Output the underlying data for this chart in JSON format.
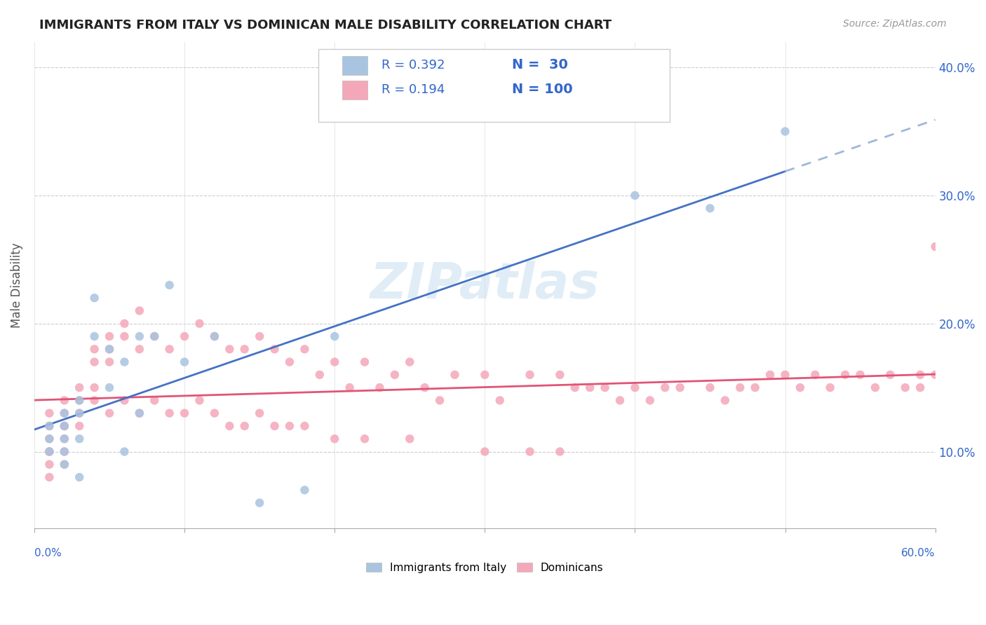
{
  "title": "IMMIGRANTS FROM ITALY VS DOMINICAN MALE DISABILITY CORRELATION CHART",
  "source": "Source: ZipAtlas.com",
  "ylabel": "Male Disability",
  "series1_label": "Immigrants from Italy",
  "series1_R": 0.392,
  "series1_N": 30,
  "series1_color": "#a8c4e0",
  "series1_trend_color": "#4472c4",
  "series1_trend_dash_color": "#a0b8d8",
  "series2_label": "Dominicans",
  "series2_R": 0.194,
  "series2_N": 100,
  "series2_color": "#f4a7b9",
  "series2_trend_color": "#e05575",
  "watermark": "ZIPatlas",
  "xmin": 0.0,
  "xmax": 0.6,
  "ymin": 0.04,
  "ymax": 0.42,
  "yticks": [
    0.1,
    0.2,
    0.3,
    0.4
  ],
  "ytick_labels": [
    "10.0%",
    "20.0%",
    "30.0%",
    "40.0%"
  ],
  "background_color": "#ffffff",
  "legend_text_color": "#333333",
  "legend_val_color": "#3366cc",
  "series1_x": [
    0.01,
    0.01,
    0.01,
    0.02,
    0.02,
    0.02,
    0.02,
    0.02,
    0.03,
    0.03,
    0.03,
    0.03,
    0.04,
    0.04,
    0.05,
    0.05,
    0.06,
    0.06,
    0.07,
    0.07,
    0.08,
    0.09,
    0.1,
    0.12,
    0.15,
    0.18,
    0.2,
    0.4,
    0.45,
    0.5
  ],
  "series1_y": [
    0.12,
    0.11,
    0.1,
    0.13,
    0.12,
    0.11,
    0.1,
    0.09,
    0.14,
    0.13,
    0.11,
    0.08,
    0.19,
    0.22,
    0.18,
    0.15,
    0.17,
    0.1,
    0.19,
    0.13,
    0.19,
    0.23,
    0.17,
    0.19,
    0.06,
    0.07,
    0.19,
    0.3,
    0.29,
    0.35
  ],
  "series2_x": [
    0.01,
    0.01,
    0.01,
    0.01,
    0.01,
    0.01,
    0.01,
    0.02,
    0.02,
    0.02,
    0.02,
    0.02,
    0.02,
    0.02,
    0.03,
    0.03,
    0.03,
    0.03,
    0.04,
    0.04,
    0.04,
    0.04,
    0.05,
    0.05,
    0.05,
    0.05,
    0.06,
    0.06,
    0.06,
    0.07,
    0.07,
    0.07,
    0.08,
    0.08,
    0.09,
    0.09,
    0.1,
    0.1,
    0.11,
    0.11,
    0.12,
    0.12,
    0.13,
    0.13,
    0.14,
    0.14,
    0.15,
    0.15,
    0.16,
    0.16,
    0.17,
    0.17,
    0.18,
    0.18,
    0.19,
    0.2,
    0.2,
    0.21,
    0.22,
    0.22,
    0.23,
    0.24,
    0.25,
    0.25,
    0.26,
    0.27,
    0.28,
    0.3,
    0.3,
    0.31,
    0.33,
    0.33,
    0.35,
    0.35,
    0.36,
    0.37,
    0.38,
    0.39,
    0.4,
    0.41,
    0.42,
    0.43,
    0.45,
    0.46,
    0.47,
    0.48,
    0.49,
    0.5,
    0.51,
    0.52,
    0.53,
    0.54,
    0.55,
    0.56,
    0.57,
    0.58,
    0.59,
    0.59,
    0.6,
    0.6
  ],
  "series2_y": [
    0.13,
    0.12,
    0.11,
    0.1,
    0.1,
    0.09,
    0.08,
    0.14,
    0.13,
    0.12,
    0.12,
    0.11,
    0.1,
    0.09,
    0.15,
    0.14,
    0.13,
    0.12,
    0.18,
    0.17,
    0.15,
    0.14,
    0.19,
    0.18,
    0.17,
    0.13,
    0.2,
    0.19,
    0.14,
    0.21,
    0.18,
    0.13,
    0.19,
    0.14,
    0.18,
    0.13,
    0.19,
    0.13,
    0.2,
    0.14,
    0.19,
    0.13,
    0.18,
    0.12,
    0.18,
    0.12,
    0.19,
    0.13,
    0.18,
    0.12,
    0.17,
    0.12,
    0.18,
    0.12,
    0.16,
    0.17,
    0.11,
    0.15,
    0.17,
    0.11,
    0.15,
    0.16,
    0.17,
    0.11,
    0.15,
    0.14,
    0.16,
    0.16,
    0.1,
    0.14,
    0.16,
    0.1,
    0.16,
    0.1,
    0.15,
    0.15,
    0.15,
    0.14,
    0.15,
    0.14,
    0.15,
    0.15,
    0.15,
    0.14,
    0.15,
    0.15,
    0.16,
    0.16,
    0.15,
    0.16,
    0.15,
    0.16,
    0.16,
    0.15,
    0.16,
    0.15,
    0.16,
    0.15,
    0.16,
    0.26
  ]
}
